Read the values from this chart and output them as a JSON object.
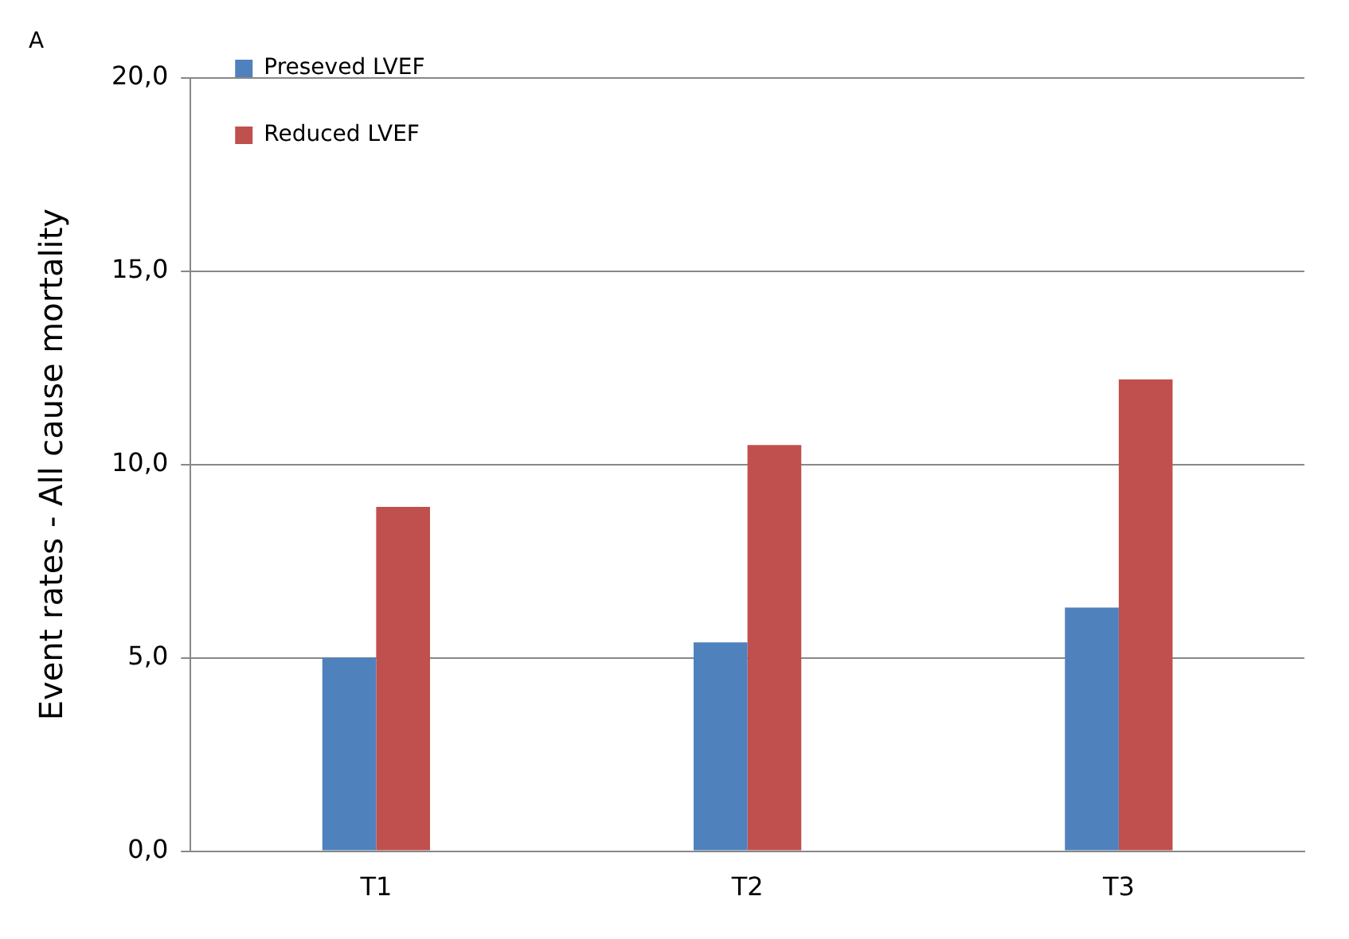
{
  "chart_data": {
    "type": "bar",
    "title": "A",
    "ylabel": "Event rates - All cause mortality",
    "categories": [
      "T1",
      "T2",
      "T3"
    ],
    "series": [
      {
        "name": "Preseved LVEF",
        "color": "#4f81bd",
        "values": [
          5.0,
          5.4,
          6.3
        ]
      },
      {
        "name": "Reduced LVEF",
        "color": "#c0504d",
        "values": [
          8.9,
          10.5,
          12.2
        ]
      }
    ],
    "ylim": [
      0,
      20
    ],
    "yticks": [
      {
        "value": 0,
        "label": "0,0"
      },
      {
        "value": 5,
        "label": "5,0"
      },
      {
        "value": 10,
        "label": "10,0"
      },
      {
        "value": 15,
        "label": "15,0"
      },
      {
        "value": 20,
        "label": "20,0"
      }
    ],
    "grid": "y",
    "legend": "top left"
  }
}
